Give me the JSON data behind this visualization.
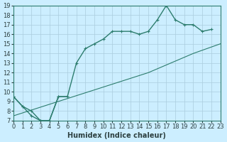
{
  "xlabel": "Humidex (Indice chaleur)",
  "ylabel": "",
  "bg_color": "#cceeff",
  "grid_color": "#aaccdd",
  "line_color": "#2d7d6e",
  "xlim": [
    0,
    23
  ],
  "ylim": [
    7,
    19
  ],
  "xticks": [
    0,
    1,
    2,
    3,
    4,
    5,
    6,
    7,
    8,
    9,
    10,
    11,
    12,
    13,
    14,
    15,
    16,
    17,
    18,
    19,
    20,
    21,
    22,
    23
  ],
  "yticks": [
    7,
    8,
    9,
    10,
    11,
    12,
    13,
    14,
    15,
    16,
    17,
    18,
    19
  ],
  "line1_x": [
    0,
    1,
    2,
    3,
    4,
    5,
    6,
    7,
    8,
    9,
    10,
    11,
    12,
    13,
    14,
    15,
    16,
    17,
    18,
    19,
    20,
    21,
    22,
    23
  ],
  "line1_y": [
    9.5,
    8.5,
    8.0,
    7.0,
    7.0,
    9.5,
    9.5,
    13.0,
    14.5,
    15.0,
    15.5,
    16.3,
    16.3,
    16.3,
    16.0,
    16.3,
    17.5,
    19.0,
    17.5,
    17.0,
    17.0,
    16.3,
    16.5,
    null
  ],
  "line2_x": [
    0,
    1,
    2,
    3,
    4,
    5,
    6,
    7,
    8,
    9,
    10,
    11,
    12,
    13,
    14,
    15,
    16,
    17,
    18,
    19,
    20,
    21,
    22,
    23
  ],
  "line2_y": [
    9.5,
    8.5,
    7.5,
    7.0,
    7.0,
    9.5,
    9.5,
    null,
    null,
    null,
    null,
    null,
    null,
    null,
    null,
    null,
    null,
    null,
    null,
    null,
    null,
    null,
    null,
    null
  ],
  "line3_x": [
    0,
    5,
    10,
    15,
    20,
    23
  ],
  "line3_y": [
    7.5,
    9.0,
    10.5,
    12.0,
    14.0,
    15.0
  ]
}
